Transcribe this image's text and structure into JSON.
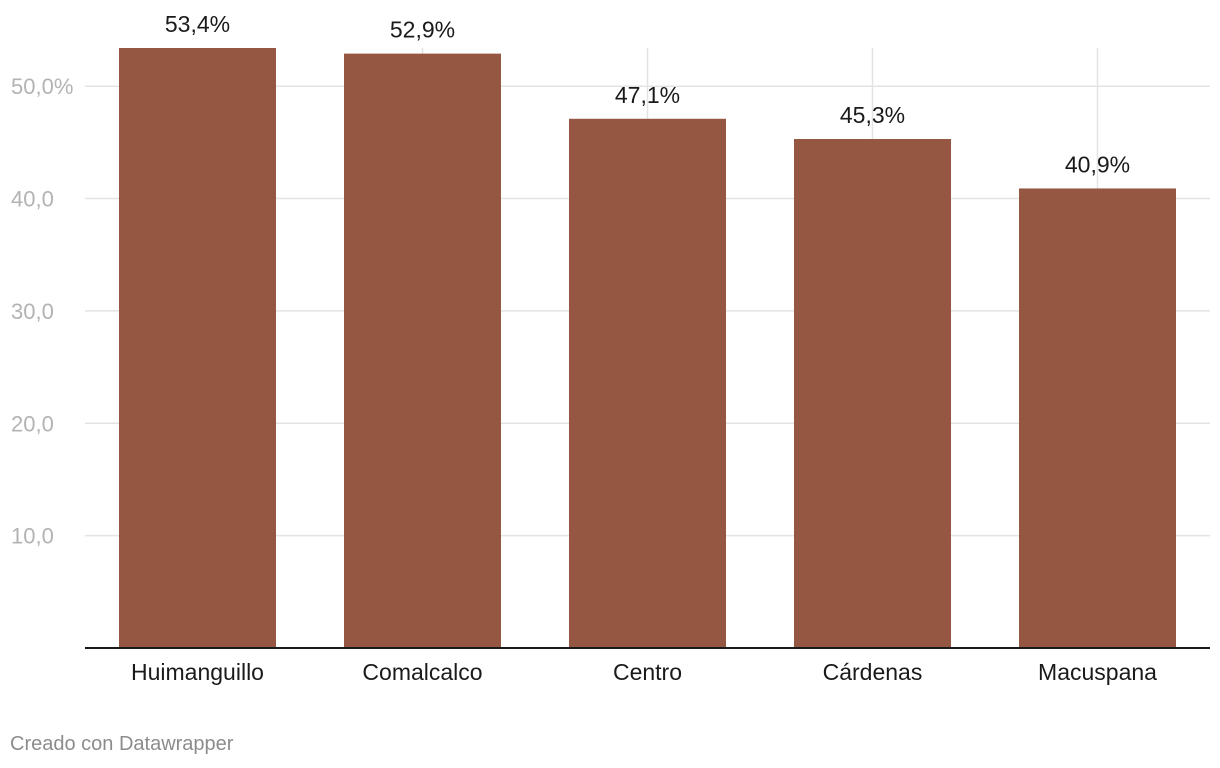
{
  "chart_data": {
    "type": "bar",
    "categories": [
      "Huimanguillo",
      "Comalcalco",
      "Centro",
      "Cárdenas",
      "Macuspana"
    ],
    "values": [
      53.4,
      52.9,
      47.1,
      45.3,
      40.9
    ],
    "value_labels": [
      "53,4%",
      "52,9%",
      "47,1%",
      "45,3%",
      "40,9%"
    ],
    "y_ticks": [
      10,
      20,
      30,
      40,
      50
    ],
    "y_tick_labels": [
      "10,0",
      "20,0",
      "30,0",
      "40,0",
      "50,0%"
    ],
    "ylim": [
      0,
      53.4
    ],
    "grid": true,
    "bar_color": "#955642",
    "title": "",
    "xlabel": "",
    "ylabel": ""
  },
  "footer": {
    "credit": "Creado con Datawrapper"
  }
}
